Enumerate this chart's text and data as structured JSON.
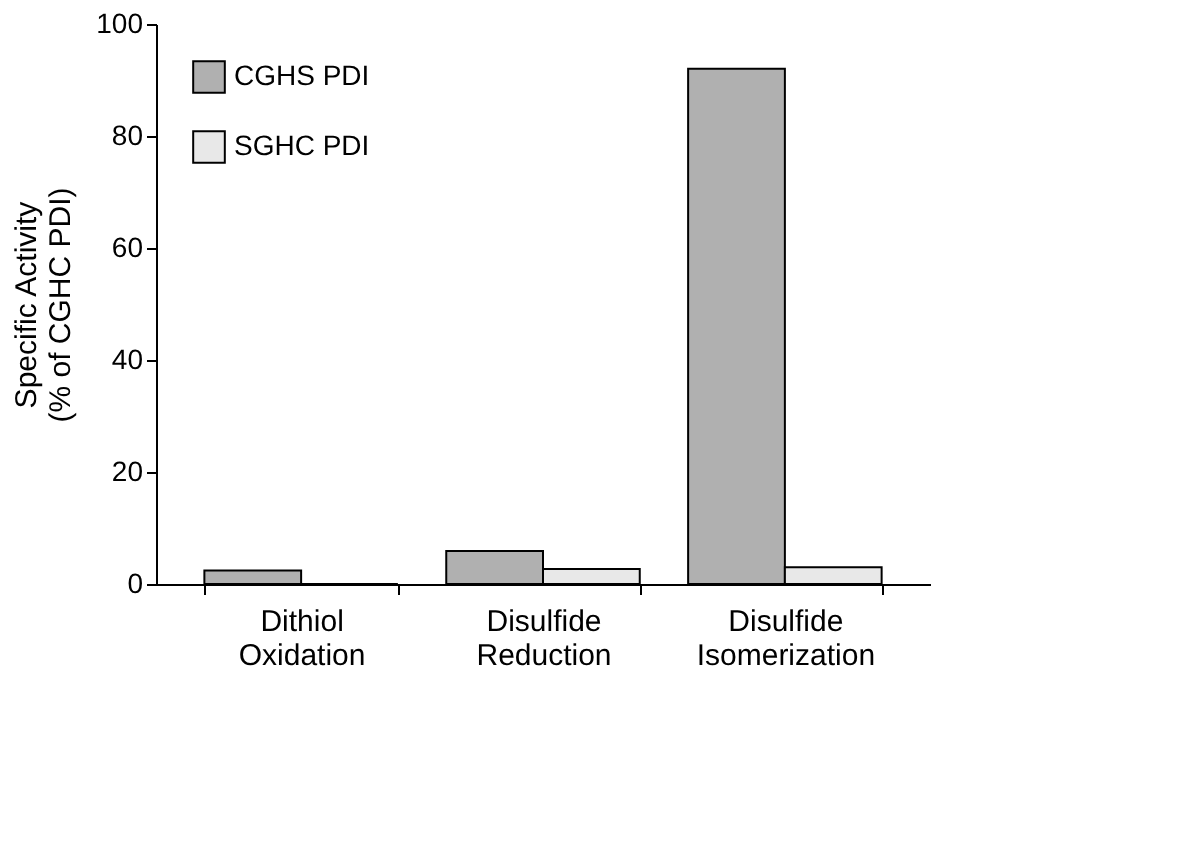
{
  "chart_data": {
    "type": "bar",
    "ylabel": "Specific Activity\n(% of CGHC PDI)",
    "categories": [
      "Dithiol Oxidation",
      "Disulfide Reduction",
      "Disulfide Isomerization"
    ],
    "series": [
      {
        "name": "CGHS PDI",
        "color": "#b0b0b0",
        "values": [
          2.4,
          5.9,
          92
        ]
      },
      {
        "name": "SGHC PDI",
        "color": "#e8e8e8",
        "values": [
          0,
          2.7,
          3
        ]
      }
    ],
    "ylim": [
      0,
      100
    ],
    "yticks": [
      0,
      20,
      40,
      60,
      80,
      100
    ],
    "grid": false,
    "legend": "top left"
  }
}
